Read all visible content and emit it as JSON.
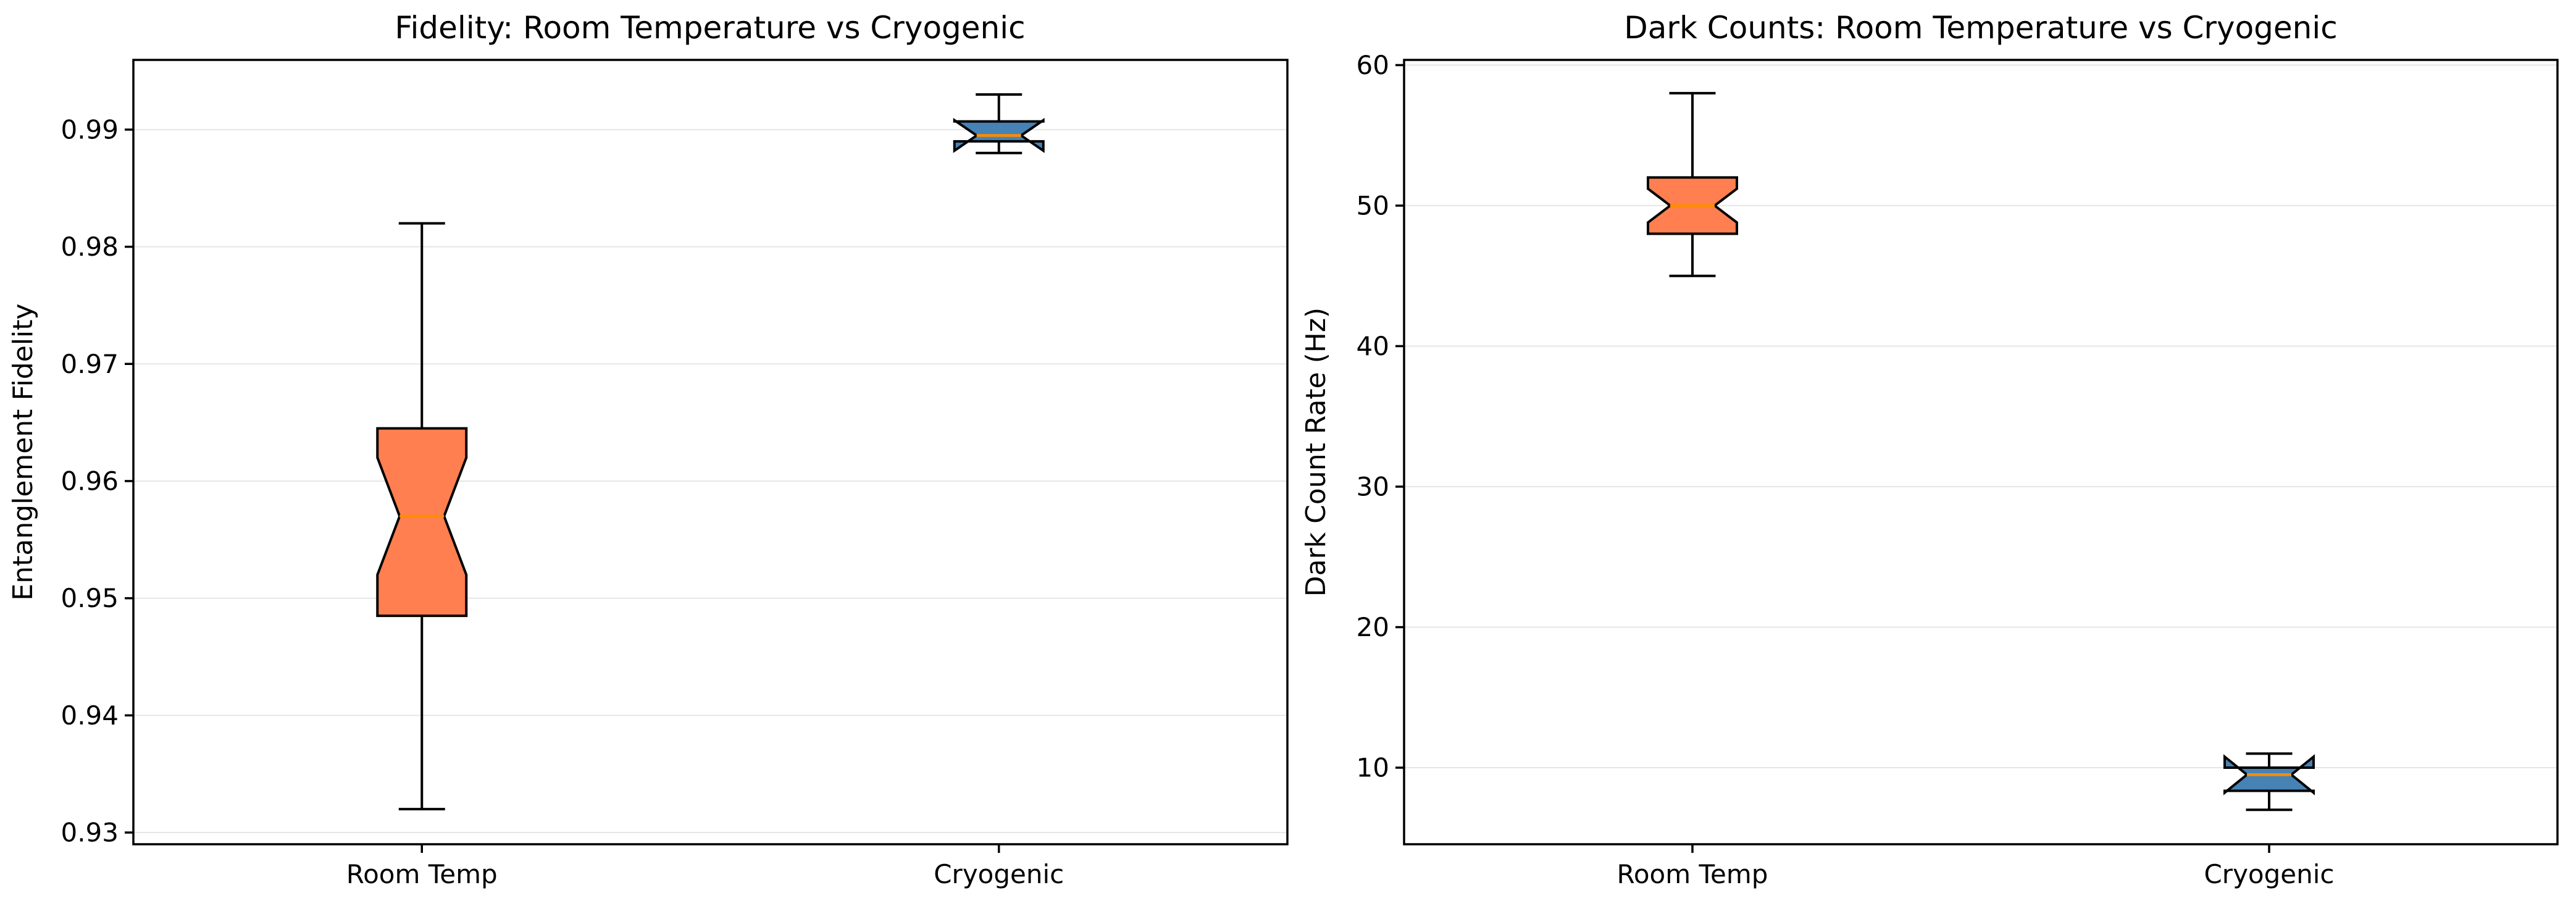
{
  "figure": {
    "background": "#ffffff",
    "grid_color": "#e6e6e6",
    "spine_color": "#000000"
  },
  "chart_data": [
    {
      "type": "box",
      "title": "Fidelity: Room Temperature vs Cryogenic",
      "ylabel": "Entanglement Fidelity",
      "xlabel": "",
      "categories": [
        "Room Temp",
        "Cryogenic"
      ],
      "yticks": [
        0.93,
        0.94,
        0.95,
        0.96,
        0.97,
        0.98,
        0.99
      ],
      "ytick_labels": [
        "0.93",
        "0.94",
        "0.95",
        "0.96",
        "0.97",
        "0.98",
        "0.99"
      ],
      "ylim": [
        0.929,
        0.99595
      ],
      "grid": true,
      "notched": true,
      "median_color": "#ff8c00",
      "edge_color": "#000000",
      "boxes": [
        {
          "label": "Room Temp",
          "fill": "#ff7f50",
          "whislo": 0.932,
          "q1": 0.9485,
          "med": 0.957,
          "q3": 0.9645,
          "whishi": 0.982,
          "cilo": 0.952,
          "cihi": 0.962
        },
        {
          "label": "Cryogenic",
          "fill": "#4682b4",
          "whislo": 0.988,
          "q1": 0.989,
          "med": 0.9895,
          "q3": 0.9907,
          "whishi": 0.993,
          "cilo": 0.9882,
          "cihi": 0.9908
        }
      ]
    },
    {
      "type": "box",
      "title": "Dark Counts: Room Temperature vs Cryogenic",
      "ylabel": "Dark Count Rate (Hz)",
      "xlabel": "",
      "categories": [
        "Room Temp",
        "Cryogenic"
      ],
      "yticks": [
        10,
        20,
        30,
        40,
        50,
        60
      ],
      "ytick_labels": [
        "10",
        "20",
        "30",
        "40",
        "50",
        "60"
      ],
      "ylim": [
        4.55,
        60.37
      ],
      "grid": true,
      "notched": true,
      "median_color": "#ff8c00",
      "edge_color": "#000000",
      "boxes": [
        {
          "label": "Room Temp",
          "fill": "#ff7f50",
          "whislo": 45,
          "q1": 48,
          "med": 50,
          "q3": 52,
          "whishi": 58,
          "cilo": 48.8,
          "cihi": 51.2
        },
        {
          "label": "Cryogenic",
          "fill": "#4682b4",
          "whislo": 7,
          "q1": 8.35,
          "med": 9.5,
          "q3": 10.0,
          "whishi": 11,
          "cilo": 8.22,
          "cihi": 10.78
        }
      ]
    }
  ]
}
